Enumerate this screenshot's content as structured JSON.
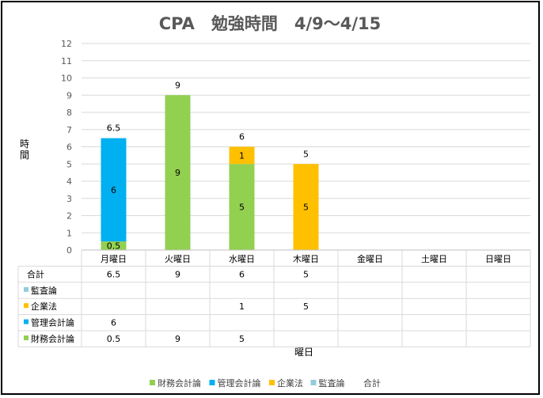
{
  "chart_data": {
    "type": "bar",
    "title": "CPA　勉強時間　4/9～4/15",
    "xlabel": "曜日",
    "ylabel": "時間",
    "ylim": [
      0,
      12
    ],
    "yticks": [
      "0",
      "1",
      "2",
      "3",
      "4",
      "5",
      "6",
      "7",
      "8",
      "9",
      "10",
      "11",
      "12"
    ],
    "categories": [
      "月曜日",
      "火曜日",
      "水曜日",
      "木曜日",
      "金曜日",
      "土曜日",
      "日曜日"
    ],
    "stacked": true,
    "grid": true,
    "legend_position": "bottom",
    "series": [
      {
        "name": "財務会計論",
        "color": "#92D050",
        "values": [
          0.5,
          9,
          5,
          null,
          null,
          null,
          null
        ]
      },
      {
        "name": "管理会計論",
        "color": "#00B0F0",
        "values": [
          6,
          null,
          null,
          null,
          null,
          null,
          null
        ]
      },
      {
        "name": "企業法",
        "color": "#FFC000",
        "values": [
          null,
          null,
          1,
          5,
          null,
          null,
          null
        ]
      },
      {
        "name": "監査論",
        "color": "#92CDDC",
        "values": [
          null,
          null,
          null,
          null,
          null,
          null,
          null
        ]
      }
    ],
    "totals": {
      "name": "合計",
      "values": [
        6.5,
        9,
        6,
        5,
        null,
        null,
        null
      ]
    },
    "table_rows": [
      {
        "name": "合計",
        "cells": [
          "6.5",
          "9",
          "6",
          "5",
          "",
          "",
          ""
        ]
      },
      {
        "name": "監査論",
        "color": "#92CDDC",
        "cells": [
          "",
          "",
          "",
          "",
          "",
          "",
          ""
        ]
      },
      {
        "name": "企業法",
        "color": "#FFC000",
        "cells": [
          "",
          "",
          "1",
          "5",
          "",
          "",
          ""
        ]
      },
      {
        "name": "管理会計論",
        "color": "#00B0F0",
        "cells": [
          "6",
          "",
          "",
          "",
          "",
          "",
          ""
        ]
      },
      {
        "name": "財務会計論",
        "color": "#92D050",
        "cells": [
          "0.5",
          "9",
          "5",
          "",
          "",
          "",
          ""
        ]
      }
    ]
  }
}
